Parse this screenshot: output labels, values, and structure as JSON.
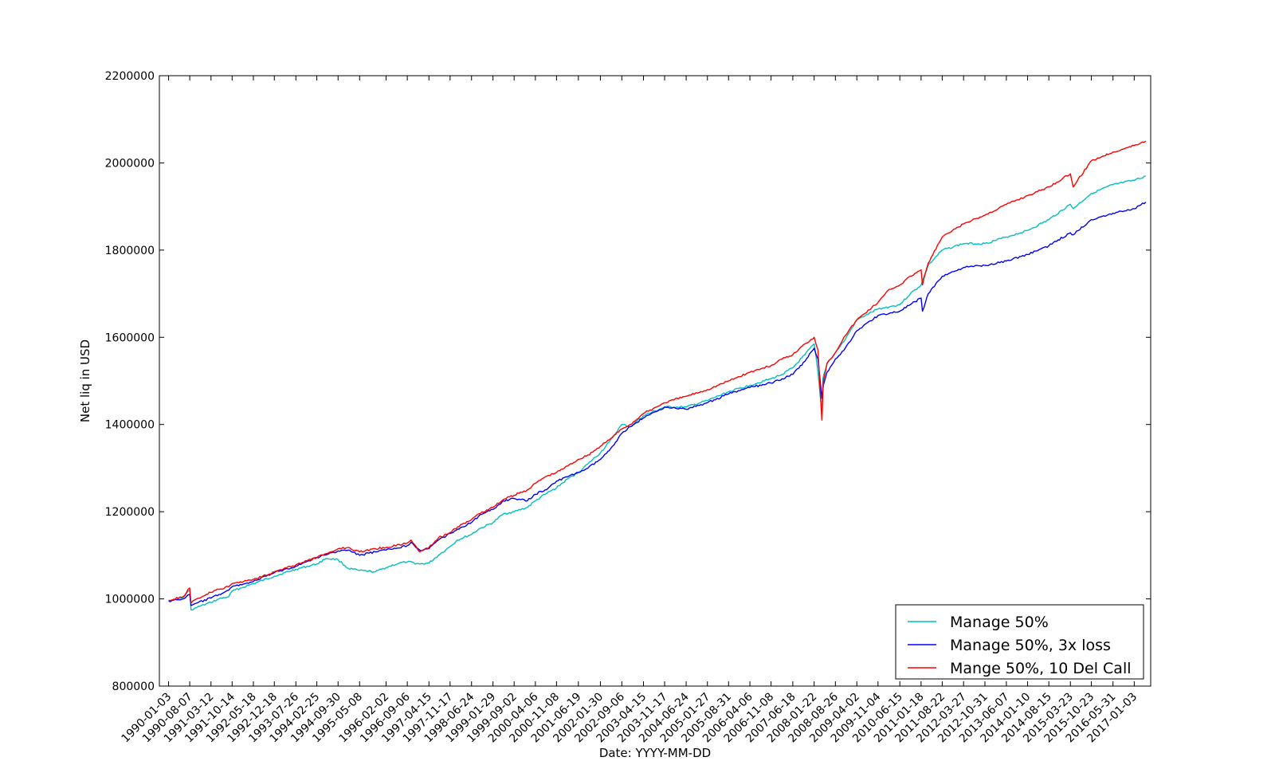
{
  "chart_data": {
    "type": "line",
    "title": "",
    "xlabel": "Date: YYYY-MM-DD",
    "ylabel": "Net liq in USD",
    "ylim": [
      800000,
      2200000
    ],
    "yticks": [
      800000,
      1000000,
      1200000,
      1400000,
      1600000,
      1800000,
      2000000,
      2200000
    ],
    "xlim": [
      "1989-10-01",
      "2017-06-20"
    ],
    "xticks": [
      "1990-01-03",
      "1990-08-07",
      "1991-03-12",
      "1991-10-14",
      "1992-05-18",
      "1992-12-18",
      "1993-07-26",
      "1994-02-25",
      "1994-09-30",
      "1995-05-08",
      "1996-02-02",
      "1996-09-06",
      "1997-04-15",
      "1997-11-17",
      "1998-06-24",
      "1999-01-29",
      "1999-09-02",
      "2000-04-06",
      "2000-11-08",
      "2001-06-19",
      "2002-01-30",
      "2002-09-06",
      "2003-04-15",
      "2003-11-17",
      "2004-06-24",
      "2005-01-27",
      "2005-08-31",
      "2006-04-06",
      "2006-11-08",
      "2007-06-18",
      "2008-01-22",
      "2008-08-26",
      "2009-04-02",
      "2009-11-04",
      "2010-06-15",
      "2011-01-18",
      "2011-08-22",
      "2012-03-27",
      "2012-10-31",
      "2013-06-07",
      "2014-01-10",
      "2014-08-15",
      "2015-03-23",
      "2015-10-23",
      "2016-05-31",
      "2017-01-03"
    ],
    "grid": false,
    "legend_position": "lower-right",
    "series": [
      {
        "name": "Manage 50%",
        "color": "#00bfbf",
        "x": [
          "1990-01-03",
          "1990-06-01",
          "1990-08-07",
          "1990-08-20",
          "1990-10-15",
          "1991-03-12",
          "1991-06-01",
          "1991-09-10",
          "1991-10-14",
          "1992-05-18",
          "1992-12-18",
          "1993-07-26",
          "1994-02-25",
          "1994-06-01",
          "1994-09-30",
          "1995-01-10",
          "1995-05-08",
          "1995-10-15",
          "1996-02-02",
          "1996-06-15",
          "1996-09-06",
          "1997-01-10",
          "1997-04-15",
          "1997-07-20",
          "1997-11-17",
          "1998-02-01",
          "1998-06-24",
          "1998-09-05",
          "1999-01-29",
          "1999-05-15",
          "1999-09-02",
          "2000-01-15",
          "2000-04-06",
          "2000-07-15",
          "2000-11-08",
          "2001-03-01",
          "2001-06-19",
          "2001-09-25",
          "2002-01-30",
          "2002-05-01",
          "2002-09-06",
          "2002-12-01",
          "2003-04-15",
          "2003-11-17",
          "2004-06-24",
          "2005-01-27",
          "2005-08-31",
          "2006-04-06",
          "2006-11-08",
          "2007-03-01",
          "2007-06-18",
          "2007-10-20",
          "2008-01-22",
          "2008-03-01",
          "2008-04-10",
          "2008-04-20",
          "2008-06-01",
          "2008-08-26",
          "2008-11-20",
          "2009-04-02",
          "2009-11-04",
          "2010-03-01",
          "2010-06-15",
          "2010-10-01",
          "2011-01-18",
          "2011-04-01",
          "2011-08-22",
          "2012-03-27",
          "2012-10-31",
          "2013-06-07",
          "2014-01-10",
          "2014-08-15",
          "2015-03-23",
          "2015-04-20",
          "2015-10-23",
          "2016-05-31",
          "2017-01-03",
          "2017-05-01"
        ],
        "values": [
          995000,
          1003000,
          1020000,
          975000,
          980000,
          992000,
          1000000,
          1005000,
          1018000,
          1035000,
          1052000,
          1068000,
          1080000,
          1093000,
          1090000,
          1070000,
          1065000,
          1062000,
          1072000,
          1082000,
          1085000,
          1080000,
          1082000,
          1100000,
          1120000,
          1135000,
          1148000,
          1160000,
          1175000,
          1195000,
          1200000,
          1210000,
          1225000,
          1240000,
          1255000,
          1275000,
          1290000,
          1310000,
          1335000,
          1360000,
          1400000,
          1395000,
          1420000,
          1440000,
          1440000,
          1455000,
          1475000,
          1490000,
          1505000,
          1515000,
          1530000,
          1560000,
          1585000,
          1520000,
          1425000,
          1505000,
          1540000,
          1565000,
          1590000,
          1640000,
          1665000,
          1670000,
          1675000,
          1700000,
          1720000,
          1765000,
          1800000,
          1815000,
          1815000,
          1830000,
          1845000,
          1870000,
          1905000,
          1895000,
          1930000,
          1950000,
          1960000,
          1970000
        ]
      },
      {
        "name": "Manage 50%, 3x loss",
        "color": "#0000ff",
        "x": [
          "1990-01-03",
          "1990-06-01",
          "1990-08-07",
          "1990-08-20",
          "1990-10-15",
          "1991-03-12",
          "1991-06-01",
          "1991-09-10",
          "1991-10-14",
          "1992-05-18",
          "1992-12-18",
          "1993-07-26",
          "1994-02-25",
          "1994-09-30",
          "1995-01-10",
          "1995-05-08",
          "1995-10-15",
          "1996-02-02",
          "1996-09-06",
          "1996-10-15",
          "1997-01-10",
          "1997-04-15",
          "1997-07-20",
          "1997-11-17",
          "1998-02-01",
          "1998-06-24",
          "1998-09-05",
          "1999-01-29",
          "1999-05-15",
          "1999-09-02",
          "2000-01-15",
          "2000-04-06",
          "2000-07-15",
          "2000-11-08",
          "2001-03-01",
          "2001-06-19",
          "2001-09-25",
          "2002-01-30",
          "2002-05-01",
          "2002-09-06",
          "2002-12-01",
          "2003-04-15",
          "2003-11-17",
          "2004-06-24",
          "2005-01-27",
          "2005-08-31",
          "2006-04-06",
          "2006-11-08",
          "2007-03-01",
          "2007-06-18",
          "2007-10-20",
          "2008-01-22",
          "2008-03-01",
          "2008-04-10",
          "2008-04-25",
          "2008-06-01",
          "2008-08-26",
          "2008-11-20",
          "2009-04-02",
          "2009-11-04",
          "2010-03-01",
          "2010-06-15",
          "2010-10-01",
          "2011-01-18",
          "2011-02-01",
          "2011-04-01",
          "2011-08-22",
          "2012-03-27",
          "2012-10-31",
          "2013-06-07",
          "2014-01-10",
          "2014-08-15",
          "2015-03-23",
          "2015-04-20",
          "2015-10-23",
          "2016-05-31",
          "2017-01-03",
          "2017-05-01"
        ],
        "values": [
          995000,
          1000000,
          1010000,
          985000,
          990000,
          1002000,
          1010000,
          1020000,
          1028000,
          1040000,
          1060000,
          1075000,
          1095000,
          1110000,
          1112000,
          1100000,
          1108000,
          1112000,
          1122000,
          1130000,
          1112000,
          1115000,
          1135000,
          1150000,
          1160000,
          1175000,
          1190000,
          1205000,
          1225000,
          1230000,
          1225000,
          1240000,
          1250000,
          1270000,
          1280000,
          1290000,
          1300000,
          1320000,
          1340000,
          1380000,
          1395000,
          1415000,
          1440000,
          1435000,
          1450000,
          1470000,
          1485000,
          1495000,
          1505000,
          1515000,
          1545000,
          1575000,
          1550000,
          1460000,
          1490000,
          1520000,
          1550000,
          1570000,
          1615000,
          1650000,
          1655000,
          1660000,
          1675000,
          1690000,
          1660000,
          1700000,
          1740000,
          1760000,
          1765000,
          1775000,
          1790000,
          1810000,
          1840000,
          1835000,
          1870000,
          1885000,
          1895000,
          1910000
        ]
      },
      {
        "name": "Mange 50%, 10 Del Call",
        "color": "#ff0000",
        "x": [
          "1990-01-03",
          "1990-06-01",
          "1990-08-07",
          "1990-08-20",
          "1990-10-15",
          "1991-03-12",
          "1991-06-01",
          "1991-09-10",
          "1991-10-14",
          "1992-05-18",
          "1992-12-18",
          "1993-07-26",
          "1994-02-25",
          "1994-09-30",
          "1995-01-10",
          "1995-05-08",
          "1995-10-15",
          "1996-02-02",
          "1996-09-06",
          "1996-10-15",
          "1997-01-10",
          "1997-04-15",
          "1997-07-20",
          "1997-11-17",
          "1998-02-01",
          "1998-06-24",
          "1998-09-05",
          "1999-01-29",
          "1999-05-15",
          "1999-09-02",
          "2000-01-15",
          "2000-04-06",
          "2000-07-15",
          "2000-11-08",
          "2001-03-01",
          "2001-06-19",
          "2001-09-25",
          "2002-01-30",
          "2002-05-01",
          "2002-09-06",
          "2002-12-01",
          "2003-04-15",
          "2003-11-17",
          "2004-06-24",
          "2005-01-27",
          "2005-08-31",
          "2006-04-06",
          "2006-11-08",
          "2007-03-01",
          "2007-06-18",
          "2007-10-20",
          "2008-01-22",
          "2008-03-01",
          "2008-04-10",
          "2008-04-25",
          "2008-06-01",
          "2008-08-26",
          "2008-11-20",
          "2009-04-02",
          "2009-11-04",
          "2010-03-01",
          "2010-06-15",
          "2010-10-01",
          "2011-01-18",
          "2011-02-01",
          "2011-04-01",
          "2011-08-22",
          "2012-03-27",
          "2012-10-31",
          "2013-06-07",
          "2014-01-10",
          "2014-08-15",
          "2015-03-23",
          "2015-04-20",
          "2015-10-23",
          "2016-05-31",
          "2017-01-03",
          "2017-05-01"
        ],
        "values": [
          997000,
          1005000,
          1025000,
          990000,
          1000000,
          1015000,
          1022000,
          1028000,
          1035000,
          1045000,
          1062000,
          1078000,
          1095000,
          1115000,
          1118000,
          1108000,
          1115000,
          1118000,
          1128000,
          1135000,
          1108000,
          1118000,
          1140000,
          1152000,
          1165000,
          1182000,
          1195000,
          1210000,
          1228000,
          1238000,
          1250000,
          1265000,
          1280000,
          1290000,
          1305000,
          1320000,
          1330000,
          1350000,
          1365000,
          1390000,
          1400000,
          1425000,
          1450000,
          1465000,
          1480000,
          1500000,
          1520000,
          1535000,
          1550000,
          1560000,
          1585000,
          1600000,
          1570000,
          1410000,
          1500000,
          1540000,
          1565000,
          1600000,
          1640000,
          1680000,
          1710000,
          1720000,
          1740000,
          1755000,
          1720000,
          1770000,
          1830000,
          1860000,
          1880000,
          1905000,
          1925000,
          1945000,
          1975000,
          1945000,
          2005000,
          2025000,
          2040000,
          2050000
        ]
      }
    ]
  }
}
